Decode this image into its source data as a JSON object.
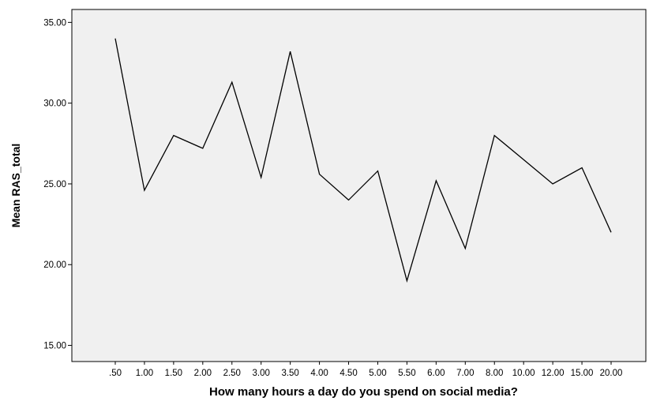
{
  "chart_data": {
    "type": "line",
    "title": "",
    "xlabel": "How many hours a day do you spend on social media?",
    "ylabel": "Mean RAS_total",
    "categories": [
      ".50",
      "1.00",
      "1.50",
      "2.00",
      "2.50",
      "3.00",
      "3.50",
      "4.00",
      "4.50",
      "5.00",
      "5.50",
      "6.00",
      "7.00",
      "8.00",
      "10.00",
      "12.00",
      "15.00",
      "20.00"
    ],
    "series": [
      {
        "values": [
          34.0,
          24.6,
          28.0,
          27.2,
          31.3,
          25.4,
          33.2,
          25.6,
          24.0,
          25.8,
          19.0,
          25.2,
          21.0,
          28.0,
          26.5,
          25.0,
          26.0,
          22.0
        ]
      }
    ],
    "ylim": [
      14.0,
      35.8
    ],
    "yticks": [
      15.0,
      20.0,
      25.0,
      30.0,
      35.0
    ],
    "ytick_labels": [
      "15.00",
      "20.00",
      "25.00",
      "30.00",
      "35.00"
    ],
    "grid": false,
    "legend": "none",
    "colors": {
      "plot_background": "#f0f0f0",
      "line": "#000000",
      "frame": "#000000"
    }
  }
}
